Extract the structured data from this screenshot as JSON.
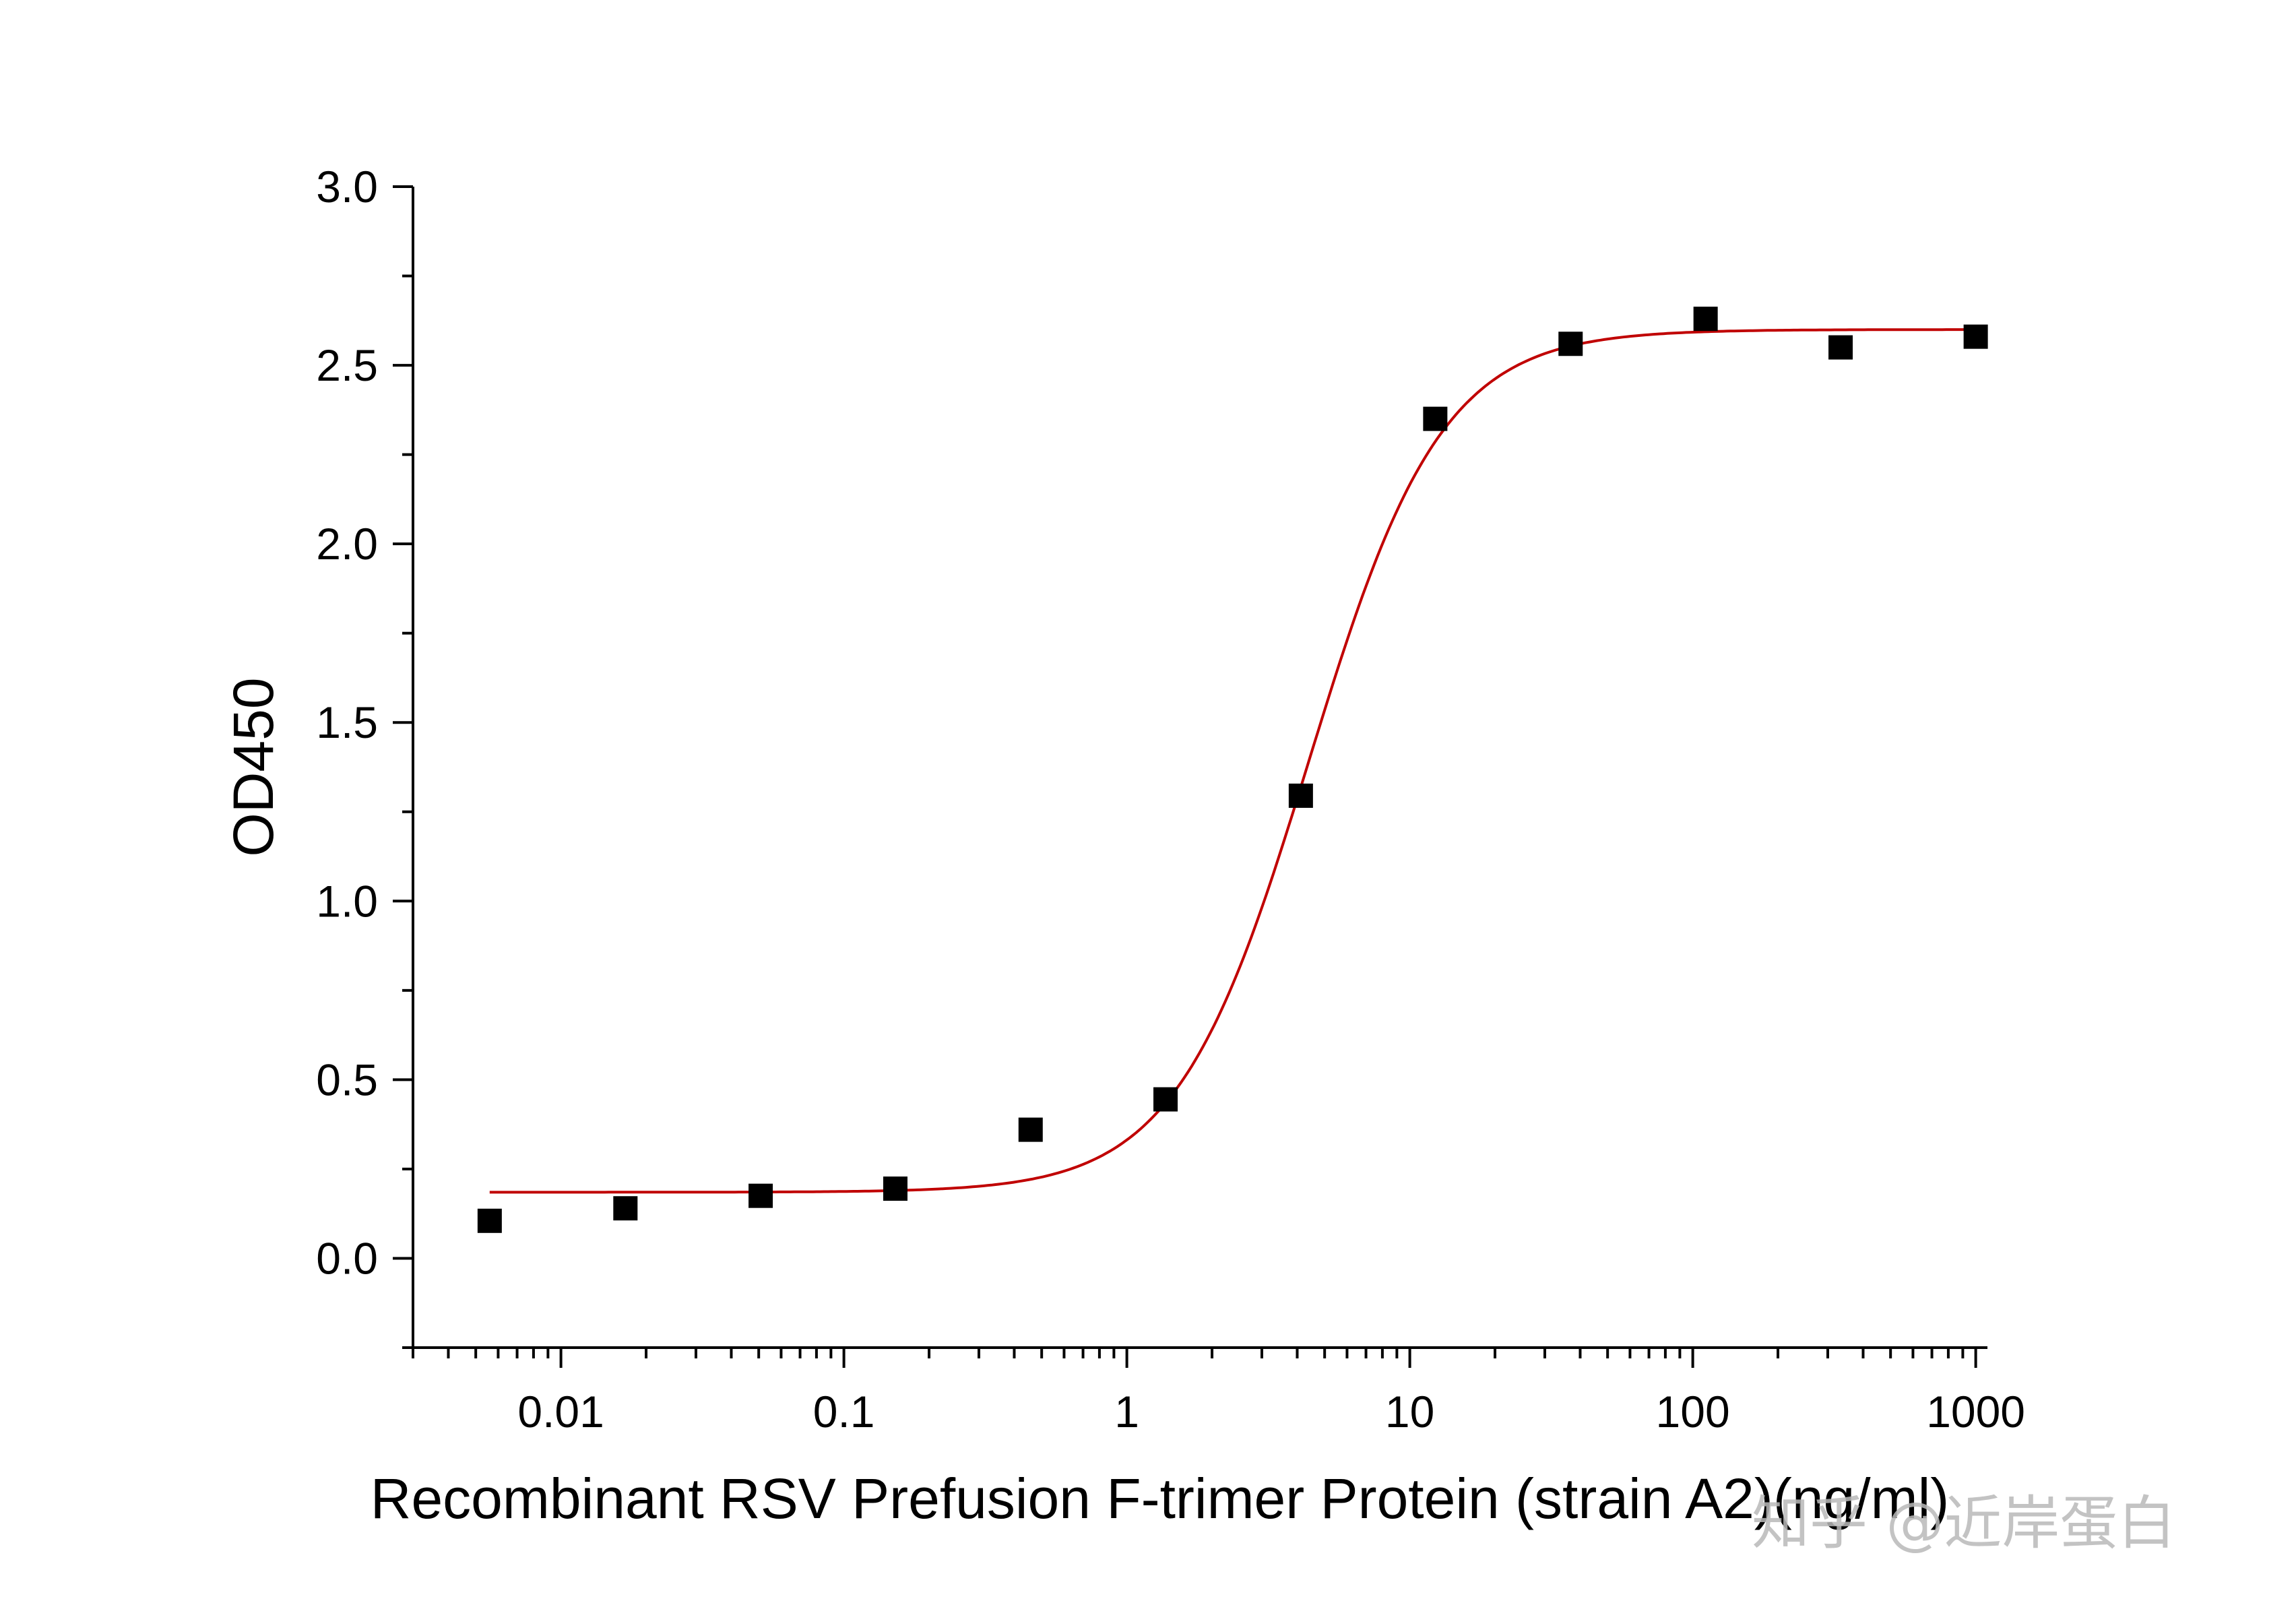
{
  "chart_data": {
    "type": "scatter",
    "title": "",
    "xlabel": "Recombinant RSV Prefusion F-trimer Protein (strain A2)(ng/ml)",
    "ylabel": "OD450",
    "x_scale": "log",
    "xlim": [
      0.003,
      1100
    ],
    "ylim": [
      -0.25,
      3.0
    ],
    "x_ticks": [
      {
        "value": 0.01,
        "label": "0.01"
      },
      {
        "value": 0.1,
        "label": "0.1"
      },
      {
        "value": 1,
        "label": "1"
      },
      {
        "value": 10,
        "label": "10"
      },
      {
        "value": 100,
        "label": "100"
      },
      {
        "value": 1000,
        "label": "1000"
      }
    ],
    "y_ticks": [
      {
        "value": 0.0,
        "label": "0.0"
      },
      {
        "value": 0.5,
        "label": "0.5"
      },
      {
        "value": 1.0,
        "label": "1.0"
      },
      {
        "value": 1.5,
        "label": "1.5"
      },
      {
        "value": 2.0,
        "label": "2.0"
      },
      {
        "value": 2.5,
        "label": "2.5"
      },
      {
        "value": 3.0,
        "label": "3.0"
      }
    ],
    "grid": false,
    "legend": "none",
    "series": [
      {
        "kind": "points",
        "marker": "square",
        "color": "#000000",
        "x": [
          0.0056,
          0.0169,
          0.0508,
          0.152,
          0.457,
          1.37,
          4.12,
          12.3,
          37.0,
          111,
          333,
          1000
        ],
        "y": [
          0.105,
          0.14,
          0.175,
          0.195,
          0.36,
          0.445,
          1.295,
          2.35,
          2.56,
          2.63,
          2.55,
          2.58
        ]
      },
      {
        "kind": "fit-curve",
        "color": "#c00000",
        "bottom": 0.185,
        "top": 2.6,
        "ec50": 4.4,
        "hill": 1.85,
        "x_range": [
          0.0056,
          1000
        ]
      }
    ]
  },
  "watermark": "知乎 @近岸蛋白"
}
